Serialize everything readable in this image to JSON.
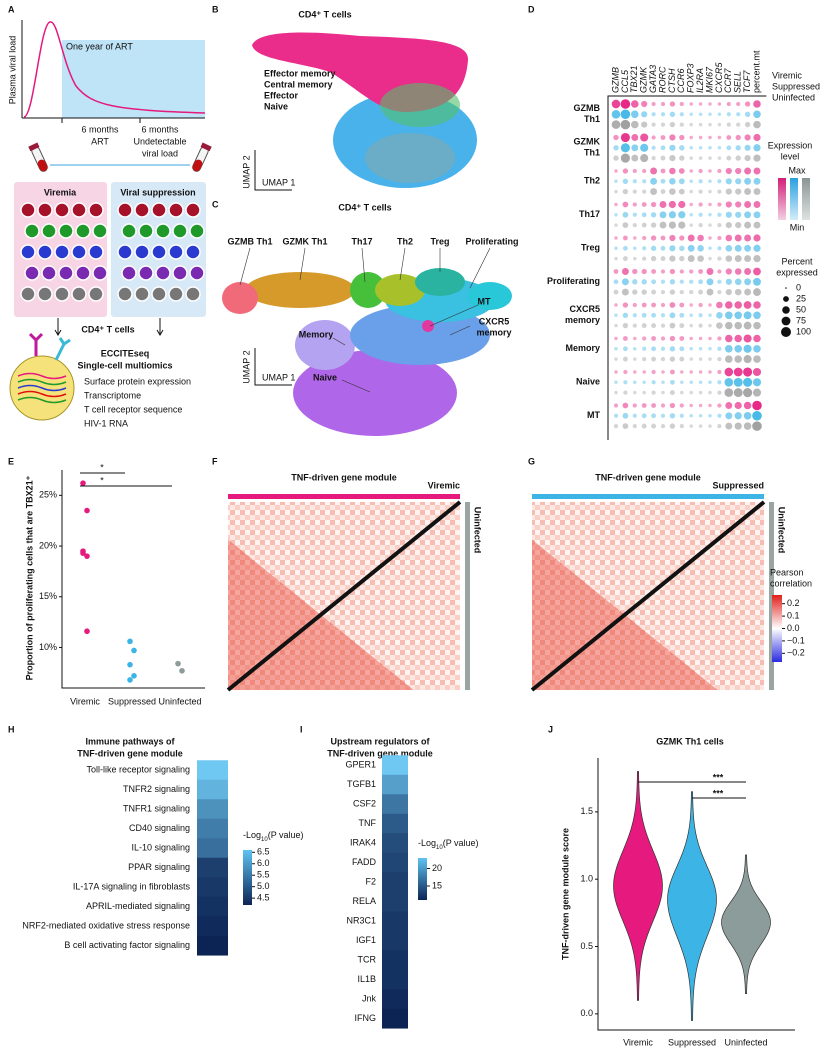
{
  "A": {
    "letter": "A",
    "art_label": "One year of ART",
    "y_label": "Plasma viral load",
    "timepoint1": [
      "6 months",
      "ART"
    ],
    "timepoint2": [
      "6 months",
      "Undetectable",
      "viral load"
    ],
    "group1": "Viremia",
    "group2": "Viral suppression",
    "cells_label": "CD4⁺ T cells",
    "method_title": [
      "ECCITEseq",
      "Single-cell multiomics"
    ],
    "modalities": [
      {
        "text": "Surface protein expression",
        "color": "#111111"
      },
      {
        "text": "Transcriptome",
        "color": "#1a8a1a"
      },
      {
        "text": "T cell receptor sequence",
        "color": "#1a2ad0"
      },
      {
        "text": "HIV-1 RNA",
        "color": "#e01010"
      }
    ]
  },
  "B": {
    "letter": "B",
    "title": "CD4⁺ T cells",
    "x_label": "UMAP 1",
    "y_label": "UMAP 2",
    "legend": [
      {
        "name": "Effector memory",
        "color": "#ea2d8a"
      },
      {
        "name": "Central memory",
        "color": "#52d33a"
      },
      {
        "name": "Effector",
        "color": "#3aa8ea"
      },
      {
        "name": "Naive",
        "color": "#8ca6a4"
      }
    ]
  },
  "C": {
    "letter": "C",
    "title": "CD4⁺ T cells",
    "x_label": "UMAP 1",
    "y_label": "UMAP 2",
    "clusters": [
      [
        "GZMB Th1"
      ],
      [
        "GZMK Th1"
      ],
      [
        "Th17"
      ],
      [
        "Th2"
      ],
      [
        "Treg"
      ],
      [
        "Proliferating"
      ],
      [
        "MT"
      ],
      [
        "CXCR5",
        "memory"
      ],
      [
        "Memory"
      ],
      [
        "Naive"
      ]
    ]
  },
  "D": {
    "letter": "D",
    "genes": [
      "GZMB",
      "CCL5",
      "TBX21",
      "GZMK",
      "GATA3",
      "RORC",
      "CTSH",
      "CCR6",
      "FOXP3",
      "IL2RA",
      "MKI67",
      "CXCR5",
      "CCR7",
      "SELL",
      "TCF7",
      "percent.mt"
    ],
    "clusters": [
      [
        "GZMB",
        "Th1"
      ],
      [
        "GZMK",
        "Th1"
      ],
      [
        "Th2"
      ],
      [
        "Th17"
      ],
      [
        "Treg"
      ],
      [
        "Proliferating"
      ],
      [
        "CXCR5",
        "memory"
      ],
      [
        "Memory"
      ],
      [
        "Naive"
      ],
      [
        "MT"
      ]
    ],
    "conditions": [
      {
        "name": "Viremic",
        "color": "#e5197e"
      },
      {
        "name": "Suppressed",
        "color": "#3cb4e6"
      },
      {
        "name": "Uninfected",
        "color": "#9a9a9a"
      }
    ],
    "expression_title": [
      "Expression",
      "level"
    ],
    "max_label": "Max",
    "min_label": "Min",
    "percent_title": [
      "Percent",
      "expressed"
    ],
    "percent_ticks": [
      0,
      25,
      50,
      75,
      100
    ],
    "percent": [
      [
        70,
        90,
        50,
        30,
        10,
        10,
        20,
        10,
        5,
        5,
        5,
        5,
        10,
        10,
        20,
        50
      ],
      [
        20,
        80,
        40,
        60,
        10,
        15,
        30,
        20,
        5,
        5,
        5,
        5,
        15,
        20,
        30,
        45
      ],
      [
        5,
        20,
        10,
        10,
        40,
        15,
        35,
        25,
        5,
        10,
        5,
        10,
        30,
        30,
        40,
        40
      ],
      [
        5,
        25,
        10,
        15,
        20,
        40,
        45,
        45,
        5,
        10,
        5,
        10,
        30,
        30,
        40,
        40
      ],
      [
        5,
        15,
        5,
        10,
        20,
        15,
        30,
        20,
        40,
        35,
        5,
        10,
        35,
        40,
        40,
        45
      ],
      [
        15,
        40,
        20,
        20,
        15,
        10,
        20,
        10,
        10,
        15,
        40,
        10,
        30,
        35,
        40,
        55
      ],
      [
        5,
        20,
        10,
        15,
        15,
        10,
        25,
        15,
        5,
        10,
        5,
        35,
        50,
        50,
        55,
        50
      ],
      [
        5,
        15,
        5,
        10,
        15,
        10,
        20,
        15,
        5,
        5,
        5,
        10,
        50,
        50,
        60,
        50
      ],
      [
        5,
        10,
        5,
        5,
        10,
        5,
        15,
        5,
        5,
        5,
        5,
        10,
        70,
        75,
        80,
        60
      ],
      [
        10,
        25,
        10,
        15,
        15,
        10,
        20,
        10,
        5,
        5,
        5,
        10,
        40,
        45,
        50,
        90
      ]
    ]
  },
  "E": {
    "letter": "E",
    "type": "strip",
    "y_label": "Proportion of proliferating  cells that are TBX21⁺",
    "categories": [
      "Viremic",
      "Suppressed",
      "Uninfected"
    ],
    "colors": [
      "#e5197e",
      "#3cb4e6",
      "#8c9c9a"
    ],
    "values": [
      [
        26.2,
        23.5,
        19.5,
        19.0,
        19.3,
        11.6
      ],
      [
        10.6,
        9.7,
        8.3,
        7.2,
        6.8
      ],
      [
        8.4,
        7.7
      ]
    ],
    "ylim": [
      6,
      27.5
    ],
    "yticks": [
      {
        "value": 10,
        "label": "10%"
      },
      {
        "value": 15,
        "label": "15%"
      },
      {
        "value": 20,
        "label": "20%"
      },
      {
        "value": 25,
        "label": "25%"
      }
    ],
    "significance": [
      "*",
      "*"
    ]
  },
  "F": {
    "letter": "F",
    "title": "TNF-driven gene module",
    "group": "Viremic",
    "reference": "Uninfected"
  },
  "G": {
    "letter": "G",
    "title": "TNF-driven gene module",
    "group": "Suppressed",
    "reference": "Uninfected",
    "colorbar_title": [
      "Pearson",
      "correlation"
    ],
    "clim": [
      -0.27,
      0.27
    ],
    "colorbar_ticks": [
      {
        "value": 0.2,
        "label": "0.2"
      },
      {
        "value": 0.1,
        "label": "0.1"
      },
      {
        "value": 0,
        "label": "0.0"
      },
      {
        "value": -0.1,
        "label": "−0.1"
      },
      {
        "value": -0.2,
        "label": "−0.2"
      }
    ]
  },
  "H": {
    "letter": "H",
    "type": "heatmap",
    "title": [
      "Immune pathways of",
      "TNF-driven gene module"
    ],
    "categories": [
      "Toll-like receptor signaling",
      "TNFR2 signaling",
      "TNFR1 signaling",
      "CD40 signaling",
      "IL-10 signaling",
      "PPAR signaling",
      "IL-17A signaling in fibroblasts",
      "APRIL-mediated signaling",
      "NRF2-mediated oxidative stress response",
      "B cell activating factor signaling"
    ],
    "values": [
      6.6,
      6.3,
      5.8,
      5.5,
      5.3,
      4.6,
      4.5,
      4.4,
      4.3,
      4.2
    ],
    "colorbar_title": [
      "-Log",
      "10",
      "(P value)"
    ],
    "clim": [
      4.2,
      6.6
    ],
    "colorbar_ticks": [
      4.5,
      {
        "value": 5,
        "label": "5.0"
      },
      5.5,
      {
        "value": 6,
        "label": "6.0"
      },
      6.5
    ]
  },
  "I": {
    "letter": "I",
    "type": "heatmap",
    "title": [
      "Upstream regulators of",
      "TNF-driven gene module"
    ],
    "categories": [
      "GPER1",
      "TGFB1",
      "CSF2",
      "TNF",
      "IRAK4",
      "FADD",
      "F2",
      "RELA",
      "NR3C1",
      "IGF1",
      "TCR",
      "IL1B",
      "Jnk",
      "IFNG"
    ],
    "values": [
      23,
      20,
      17,
      15,
      14,
      13.5,
      13,
      13,
      12.5,
      12.5,
      12,
      12,
      11.5,
      11
    ],
    "colorbar_title": [
      "-Log",
      "10",
      "(P value)"
    ],
    "clim": [
      11,
      23
    ],
    "colorbar_ticks": [
      15,
      20
    ]
  },
  "J": {
    "letter": "J",
    "type": "violin",
    "title": "GZMK Th1 cells",
    "y_label": "TNF-driven gene module score",
    "categories": [
      "Viremic",
      "Suppressed",
      "Uninfected"
    ],
    "colors": [
      "#e5197e",
      "#3cb4e6",
      "#8c9c9a"
    ],
    "min": [
      0.1,
      -0.05,
      0.15
    ],
    "mode": [
      0.95,
      0.85,
      0.68
    ],
    "max": [
      1.8,
      1.65,
      1.18
    ],
    "ylim": [
      -0.12,
      1.9
    ],
    "yticks": [
      {
        "value": 0,
        "label": "0.0"
      },
      {
        "value": 0.5,
        "label": "0.5"
      },
      {
        "value": 1,
        "label": "1.0"
      },
      {
        "value": 1.5,
        "label": "1.5"
      }
    ],
    "significance": [
      "***",
      "***"
    ]
  }
}
